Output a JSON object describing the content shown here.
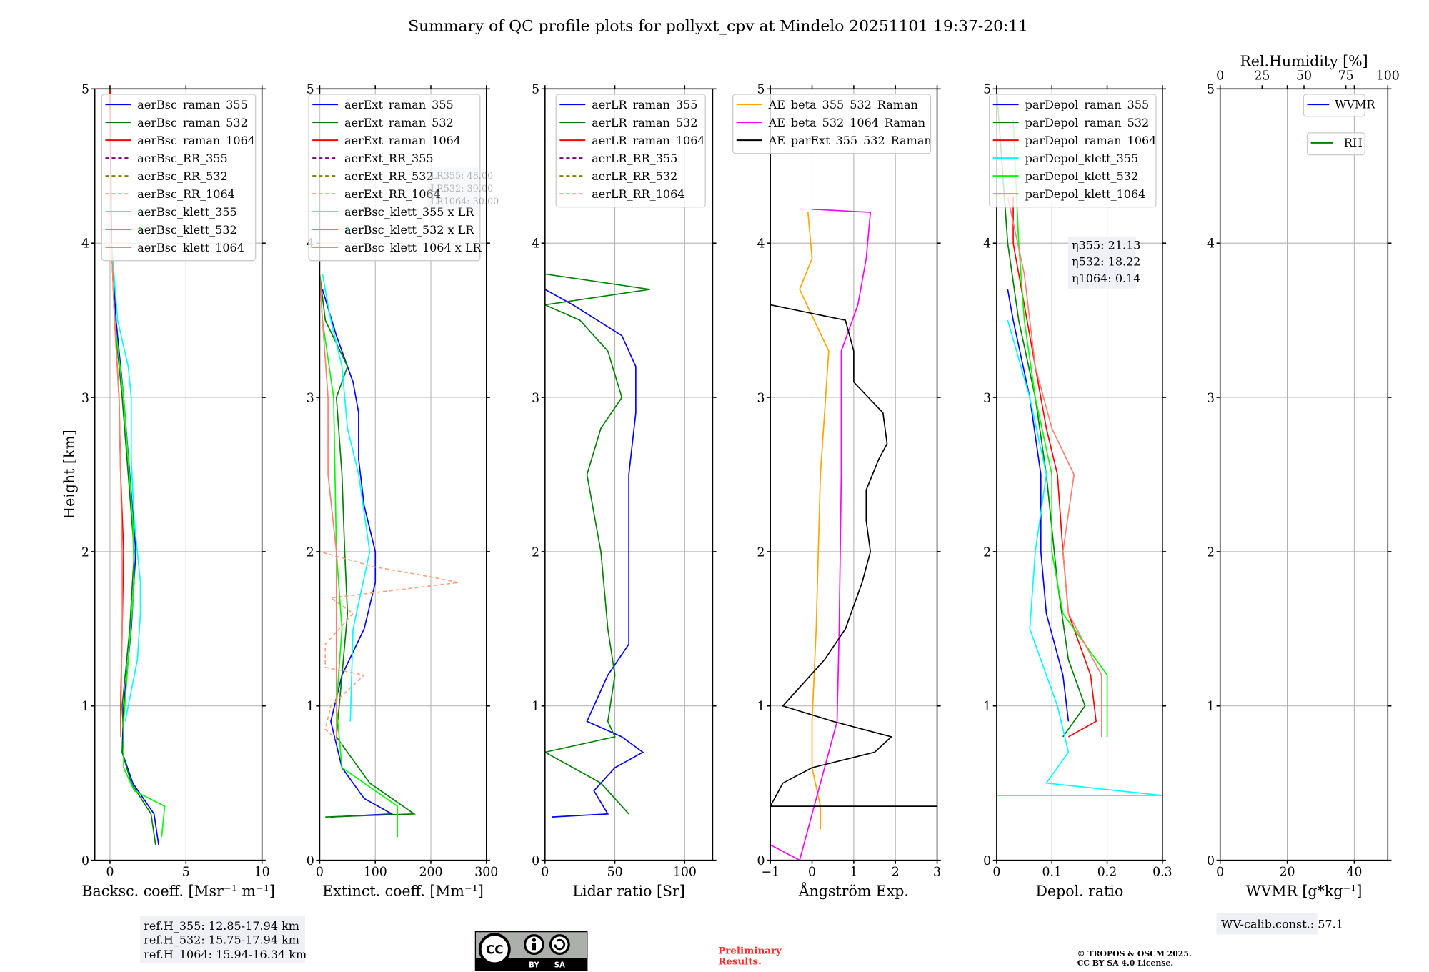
{
  "title": "Summary of QC profile plots for pollyxt_cpv at Mindelo 20251101 19:37-20:11",
  "ylabel": "Height [km]",
  "annotations": {
    "lr_box": [
      "LR355: 48.00",
      "LR532: 39.00",
      "LR1064: 30.00"
    ],
    "eta_box": [
      "η355: 21.13",
      "η532: 18.22",
      "η1064: 0.14"
    ],
    "ref_heights": [
      "ref.H_355: 12.85-17.94 km",
      "ref.H_532: 15.75-17.94 km",
      "ref.H_1064: 15.94-16.34 km"
    ],
    "wv_calib": "WV-calib.const.: 57.1",
    "preliminary": [
      "Preliminary",
      "Results."
    ],
    "copyright": [
      "© TROPOS & OSCM 2025.",
      "CC BY SA 4.0 License."
    ],
    "cc_logo": [
      "CC",
      "BY",
      "SA"
    ]
  },
  "chart_data": [
    {
      "type": "line",
      "id": "backscatter",
      "xlabel": "Backsc. coeff. [Msr⁻¹ m⁻¹]",
      "ylabel": "Height [km]",
      "xlim": [
        -1,
        10
      ],
      "ylim": [
        0,
        5
      ],
      "xticks": [
        0,
        5,
        10
      ],
      "yticks": [
        0,
        1,
        2,
        3,
        4,
        5
      ],
      "grid": true,
      "legend_position": "top-left",
      "series": [
        {
          "name": "aerBsc_raman_355",
          "color": "#0000ff",
          "dash": false,
          "h": [
            0.1,
            0.3,
            0.5,
            0.7,
            1.0,
            1.5,
            2.0,
            2.5,
            3.0,
            3.5,
            4.0,
            5.0
          ],
          "x": [
            3.2,
            2.9,
            1.5,
            0.8,
            0.9,
            1.4,
            1.7,
            1.3,
            0.9,
            0.4,
            0.1,
            0.0
          ]
        },
        {
          "name": "aerBsc_raman_532",
          "color": "#008000",
          "dash": false,
          "h": [
            0.1,
            0.3,
            0.5,
            0.7,
            0.8,
            1.0,
            1.5,
            2.0,
            2.5,
            3.0,
            3.5,
            4.0,
            5.0
          ],
          "x": [
            3.0,
            2.7,
            1.4,
            0.8,
            0.9,
            0.8,
            1.3,
            1.6,
            1.2,
            0.8,
            0.3,
            0.1,
            0.0
          ]
        },
        {
          "name": "aerBsc_raman_1064",
          "color": "#ff0000",
          "dash": false,
          "h": [
            0.8,
            1.0,
            1.5,
            2.0,
            2.5,
            3.0,
            3.5,
            4.0,
            5.0
          ],
          "x": [
            0.7,
            0.7,
            0.8,
            0.9,
            0.7,
            0.6,
            0.3,
            0.1,
            0.0
          ]
        },
        {
          "name": "aerBsc_RR_355",
          "color": "#800080",
          "dash": true,
          "h": [],
          "x": []
        },
        {
          "name": "aerBsc_RR_532",
          "color": "#808000",
          "dash": true,
          "h": [],
          "x": []
        },
        {
          "name": "aerBsc_RR_1064",
          "color": "#ffa07a",
          "dash": true,
          "h": [],
          "x": []
        },
        {
          "name": "aerBsc_klett_355",
          "color": "#00ffff",
          "dash": false,
          "h": [
            0.9,
            1.3,
            1.6,
            1.8,
            2.2,
            2.6,
            3.0,
            3.2,
            3.5,
            4.0
          ],
          "x": [
            1.0,
            1.8,
            2.0,
            2.0,
            1.6,
            1.4,
            1.4,
            1.2,
            0.5,
            0.1
          ]
        },
        {
          "name": "aerBsc_klett_532",
          "color": "#00ff00",
          "dash": false,
          "h": [
            0.15,
            0.35,
            0.45,
            0.6,
            0.9,
            1.3,
            1.8,
            2.2,
            2.6,
            3.0,
            3.5,
            4.0
          ],
          "x": [
            3.4,
            3.6,
            1.6,
            0.9,
            0.9,
            1.2,
            1.6,
            1.5,
            1.2,
            0.9,
            0.3,
            0.1
          ]
        },
        {
          "name": "aerBsc_klett_1064",
          "color": "#fa8072",
          "dash": false,
          "h": [
            0.8,
            1.5,
            2.0,
            2.5,
            3.0,
            3.5,
            4.0
          ],
          "x": [
            0.7,
            0.8,
            0.8,
            0.7,
            0.6,
            0.3,
            0.1
          ]
        }
      ]
    },
    {
      "type": "line",
      "id": "extinction",
      "xlabel": "Extinct. coeff. [Mm⁻¹]",
      "xlim": [
        0,
        300
      ],
      "ylim": [
        0,
        5
      ],
      "xticks": [
        0,
        100,
        200,
        300
      ],
      "yticks": [
        0,
        1,
        2,
        3,
        4,
        5
      ],
      "grid": true,
      "legend_position": "top-left",
      "series": [
        {
          "name": "aerExt_raman_355",
          "color": "#0000ff",
          "dash": false,
          "h": [
            0.28,
            0.3,
            0.4,
            0.6,
            0.9,
            1.2,
            1.5,
            1.8,
            2.0,
            2.3,
            2.6,
            2.9,
            3.1,
            3.4,
            3.7
          ],
          "x": [
            20,
            130,
            80,
            40,
            20,
            40,
            80,
            100,
            100,
            80,
            70,
            70,
            60,
            30,
            5
          ]
        },
        {
          "name": "aerExt_raman_532",
          "color": "#008000",
          "dash": false,
          "h": [
            0.28,
            0.3,
            0.5,
            0.8,
            1.2,
            1.6,
            2.0,
            2.5,
            3.0,
            3.2,
            3.5,
            3.8
          ],
          "x": [
            10,
            170,
            90,
            30,
            40,
            50,
            45,
            40,
            30,
            50,
            10,
            0
          ]
        },
        {
          "name": "aerExt_raman_1064",
          "color": "#ff0000",
          "dash": false,
          "h": [],
          "x": []
        },
        {
          "name": "aerExt_RR_355",
          "color": "#800080",
          "dash": true,
          "h": [],
          "x": []
        },
        {
          "name": "aerExt_RR_532",
          "color": "#808000",
          "dash": true,
          "h": [],
          "x": []
        },
        {
          "name": "aerExt_RR_1064",
          "color": "#ffa07a",
          "dash": true,
          "h": [
            0.75,
            0.85,
            1.0,
            1.2,
            1.25,
            1.4,
            1.6,
            1.7,
            1.8,
            1.85,
            1.9,
            2.0
          ],
          "x": [
            40,
            10,
            20,
            80,
            10,
            10,
            60,
            20,
            250,
            180,
            100,
            0
          ]
        },
        {
          "name": "aerBsc_klett_355 x LR",
          "color": "#00ffff",
          "dash": false,
          "h": [
            0.9,
            1.5,
            2.0,
            2.5,
            2.8,
            3.2,
            3.5,
            3.8
          ],
          "x": [
            55,
            60,
            90,
            70,
            50,
            40,
            20,
            5
          ]
        },
        {
          "name": "aerBsc_klett_532 x LR",
          "color": "#00ff00",
          "dash": false,
          "h": [
            0.15,
            0.35,
            0.6,
            1.0,
            1.5,
            2.0,
            3.0,
            3.5,
            3.8
          ],
          "x": [
            140,
            140,
            40,
            30,
            40,
            30,
            25,
            5,
            0
          ]
        },
        {
          "name": "aerBsc_klett_1064 x LR",
          "color": "#fa8072",
          "dash": false,
          "h": [
            0.8,
            1.5,
            2.0,
            2.5,
            3.0,
            3.5,
            3.8
          ],
          "x": [
            30,
            30,
            30,
            15,
            15,
            5,
            0
          ]
        }
      ]
    },
    {
      "type": "line",
      "id": "lidar_ratio",
      "xlabel": "Lidar ratio [Sr]",
      "xlim": [
        0,
        120
      ],
      "ylim": [
        0,
        5
      ],
      "xticks": [
        0,
        50,
        100
      ],
      "yticks": [
        0,
        1,
        2,
        3,
        4,
        5
      ],
      "grid": true,
      "legend_position": "top-right",
      "series": [
        {
          "name": "aerLR_raman_355",
          "color": "#0000ff",
          "dash": false,
          "h": [
            0.28,
            0.3,
            0.45,
            0.6,
            0.7,
            0.8,
            0.9,
            1.0,
            1.2,
            1.4,
            1.6,
            2.0,
            2.5,
            2.9,
            3.2,
            3.4,
            3.6,
            3.7
          ],
          "x": [
            5,
            45,
            35,
            50,
            70,
            55,
            30,
            35,
            45,
            60,
            60,
            60,
            60,
            65,
            65,
            55,
            20,
            0
          ]
        },
        {
          "name": "aerLR_raman_532",
          "color": "#008000",
          "dash": false,
          "h": [
            0.3,
            0.5,
            0.7,
            0.8,
            0.9,
            1.2,
            1.5,
            2.0,
            2.5,
            2.8,
            3.0,
            3.3,
            3.5,
            3.6,
            3.7,
            3.8
          ],
          "x": [
            60,
            40,
            0,
            50,
            45,
            50,
            45,
            40,
            30,
            40,
            55,
            45,
            25,
            0,
            75,
            0
          ]
        },
        {
          "name": "aerLR_raman_1064",
          "color": "#ff0000",
          "dash": false,
          "h": [],
          "x": []
        },
        {
          "name": "aerLR_RR_355",
          "color": "#800080",
          "dash": true,
          "h": [],
          "x": []
        },
        {
          "name": "aerLR_RR_532",
          "color": "#808000",
          "dash": true,
          "h": [],
          "x": []
        },
        {
          "name": "aerLR_RR_1064",
          "color": "#ffa07a",
          "dash": true,
          "h": [],
          "x": []
        }
      ]
    },
    {
      "type": "line",
      "id": "angstrom",
      "xlabel": "Ångström Exp.",
      "xlim": [
        -1,
        3
      ],
      "ylim": [
        0,
        5
      ],
      "xticks": [
        -1,
        0,
        1,
        2,
        3
      ],
      "yticks": [
        0,
        1,
        2,
        3,
        4,
        5
      ],
      "grid": true,
      "legend_position": "top",
      "series": [
        {
          "name": "AE_beta_355_532_Raman",
          "color": "#ffa500",
          "dash": false,
          "h": [
            0.2,
            0.35,
            0.6,
            0.9,
            1.5,
            2.5,
            3.3,
            3.7,
            3.9,
            4.2
          ],
          "x": [
            0.2,
            0.2,
            0.0,
            0.0,
            0.1,
            0.2,
            0.4,
            -0.3,
            0.0,
            -0.1
          ]
        },
        {
          "name": "AE_beta_532_1064_Raman",
          "color": "#ff00ff",
          "dash": false,
          "h": [
            0.1,
            0.0,
            0.9,
            1.5,
            2.5,
            3.3,
            3.6,
            3.9,
            4.2,
            4.22
          ],
          "x": [
            -1,
            -0.3,
            0.6,
            0.65,
            0.7,
            0.7,
            1.1,
            1.3,
            1.4,
            0
          ]
        },
        {
          "name": "AE_parExt_355_532_Raman",
          "color": "#000000",
          "dash": false,
          "h": [
            0.35,
            0.35,
            0.5,
            0.6,
            0.7,
            0.8,
            0.9,
            1.0,
            1.3,
            1.5,
            1.8,
            2.0,
            2.2,
            2.4,
            2.6,
            2.7,
            2.9,
            3.1,
            3.3,
            3.5,
            3.6
          ],
          "x": [
            3,
            -1,
            -0.7,
            0,
            1.5,
            1.9,
            0.5,
            -0.7,
            0.3,
            0.8,
            1.2,
            1.4,
            1.3,
            1.3,
            1.6,
            1.8,
            1.7,
            1.0,
            1.0,
            0.8,
            -1
          ]
        }
      ]
    },
    {
      "type": "line",
      "id": "depolarization",
      "xlabel": "Depol. ratio",
      "xlim": [
        0,
        0.3
      ],
      "ylim": [
        0,
        5
      ],
      "xticks": [
        0.0,
        0.1,
        0.2,
        0.3
      ],
      "yticks": [
        0,
        1,
        2,
        3,
        4,
        5
      ],
      "grid": true,
      "legend_position": "top-left",
      "series": [
        {
          "name": "parDepol_raman_355",
          "color": "#0000ff",
          "dash": false,
          "h": [
            0.9,
            1.2,
            1.6,
            2.0,
            2.5,
            3.0,
            3.5,
            3.7
          ],
          "x": [
            0.13,
            0.12,
            0.09,
            0.08,
            0.08,
            0.06,
            0.03,
            0.02
          ]
        },
        {
          "name": "parDepol_raman_532",
          "color": "#008000",
          "dash": false,
          "h": [
            0.8,
            1.0,
            1.3,
            1.8,
            2.5,
            3.0,
            3.5,
            4.0,
            5.0
          ],
          "x": [
            0.12,
            0.16,
            0.13,
            0.11,
            0.09,
            0.07,
            0.04,
            0.02,
            0.0
          ]
        },
        {
          "name": "parDepol_raman_1064",
          "color": "#ff0000",
          "dash": false,
          "h": [
            0.8,
            0.9,
            1.2,
            1.6,
            2.0,
            2.5,
            2.8,
            3.2,
            3.6,
            4.0,
            4.3
          ],
          "x": [
            0.13,
            0.18,
            0.17,
            0.13,
            0.12,
            0.11,
            0.09,
            0.07,
            0.05,
            0.03,
            0.03
          ]
        },
        {
          "name": "parDepol_klett_355",
          "color": "#00ffff",
          "dash": false,
          "h": [
            0.0,
            0.42,
            0.42,
            0.5,
            0.7,
            1.0,
            1.5,
            2.0,
            2.5,
            3.0,
            3.5
          ],
          "x": [
            0.0,
            0.0,
            0.3,
            0.09,
            0.13,
            0.11,
            0.06,
            0.07,
            0.09,
            0.06,
            0.02
          ]
        },
        {
          "name": "parDepol_klett_532",
          "color": "#00ff00",
          "dash": false,
          "h": [
            0.8,
            1.2,
            1.6,
            2.0,
            2.5,
            3.0,
            3.5,
            4.0,
            4.8
          ],
          "x": [
            0.2,
            0.2,
            0.12,
            0.1,
            0.1,
            0.07,
            0.05,
            0.04,
            0.03
          ]
        },
        {
          "name": "parDepol_klett_1064",
          "color": "#fa8072",
          "dash": false,
          "h": [
            0.8,
            1.2,
            1.6,
            2.0,
            2.5,
            2.8,
            3.2,
            3.8,
            4.3
          ],
          "x": [
            0.19,
            0.19,
            0.13,
            0.12,
            0.14,
            0.1,
            0.07,
            0.05,
            0.02
          ]
        }
      ]
    },
    {
      "type": "line",
      "id": "water_vapor",
      "xlabel": "WVMR [g*kg⁻¹]",
      "xlim": [
        0,
        50
      ],
      "ylim": [
        0,
        5
      ],
      "xticks": [
        0,
        20,
        40
      ],
      "yticks": [
        0,
        1,
        2,
        3,
        4,
        5
      ],
      "grid": true,
      "top_axis": {
        "label": "Rel.Humidity [%]",
        "lim": [
          0,
          100
        ],
        "ticks": [
          0,
          25,
          50,
          75,
          100
        ]
      },
      "legend_position": "top-right",
      "series": [
        {
          "name": "WVMR",
          "color": "#0000ff",
          "dash": false,
          "h": [],
          "x": []
        },
        {
          "name": "RH",
          "color": "#008000",
          "dash": false,
          "h": [],
          "x": []
        }
      ]
    }
  ]
}
